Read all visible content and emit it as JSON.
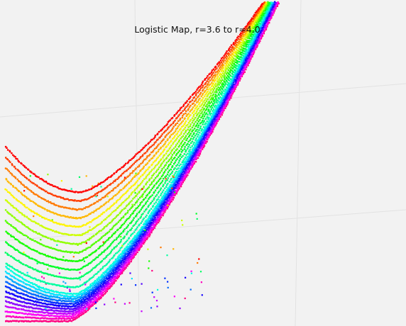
{
  "chart_data": {
    "type": "scatter",
    "title": "Logistic Map, r=3.6 to r=4.0",
    "xlabel": "",
    "ylabel": "",
    "r_range": [
      3.6,
      4.0
    ],
    "axes_visible": false,
    "grid": true,
    "legend": "none",
    "colormap": [
      "#ff0000",
      "#ff8000",
      "#ffff00",
      "#80ff00",
      "#00ff00",
      "#00ff80",
      "#00ffff",
      "#0080ff",
      "#0000ff",
      "#8000ff",
      "#ff00ff",
      "#ff0080"
    ],
    "background": "#f2f2f2",
    "gridline_color": "#e2e2e2",
    "series_count": 24
  }
}
